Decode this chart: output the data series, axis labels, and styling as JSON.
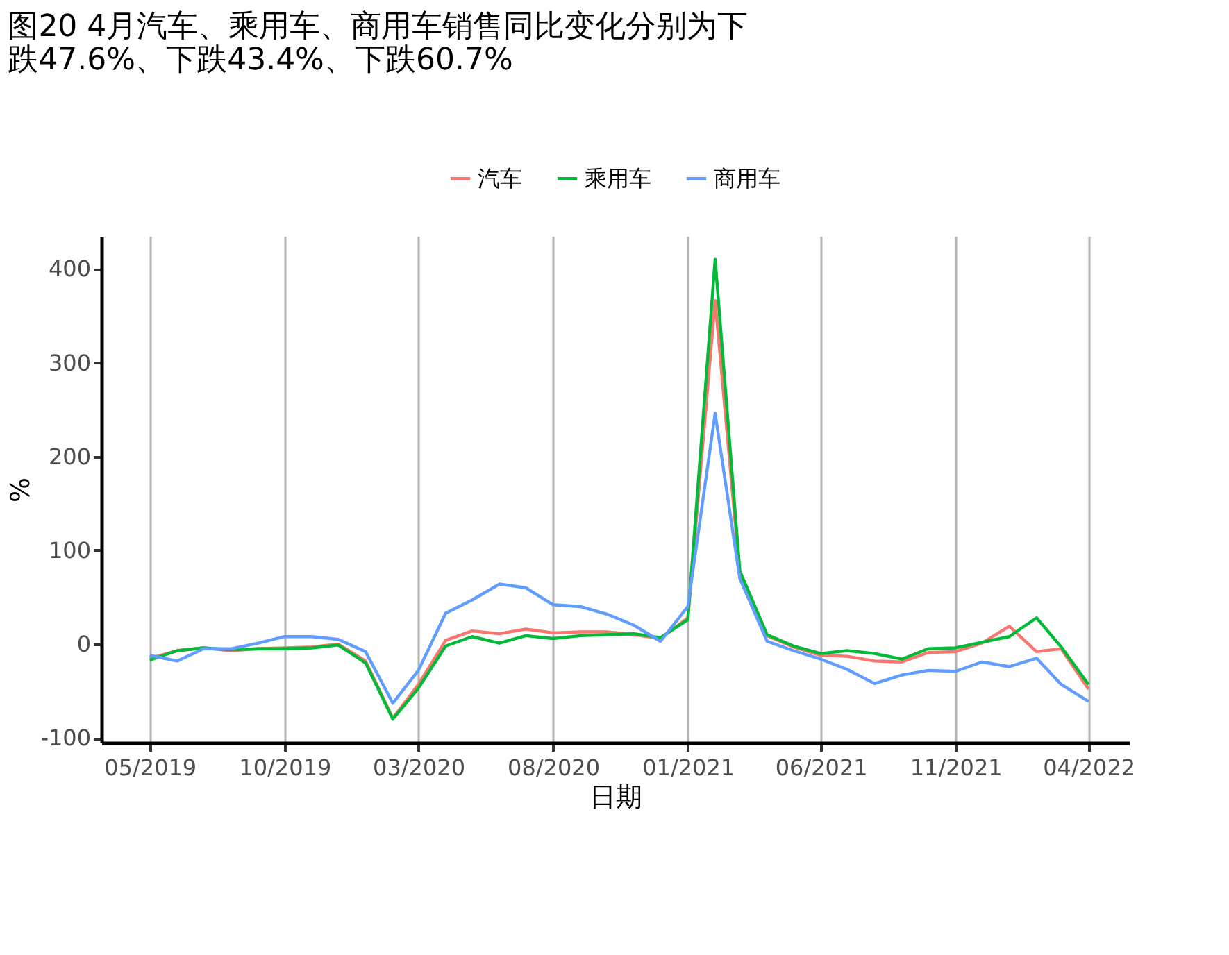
{
  "chart_data": {
    "type": "line",
    "title": "图20 4月汽车、乘用车、商用车销售同比变化分别为下跌47.6%、下跌43.4%、下跌60.7%",
    "xlabel": "日期",
    "ylabel": "%",
    "x": [
      "2019-05",
      "2019-06",
      "2019-07",
      "2019-08",
      "2019-09",
      "2019-10",
      "2019-11",
      "2019-12",
      "2020-01",
      "2020-02",
      "2020-03",
      "2020-04",
      "2020-05",
      "2020-06",
      "2020-07",
      "2020-08",
      "2020-09",
      "2020-10",
      "2020-11",
      "2020-12",
      "2021-01",
      "2021-02",
      "2021-03",
      "2021-04",
      "2021-05",
      "2021-06",
      "2021-07",
      "2021-08",
      "2021-09",
      "2021-10",
      "2021-11",
      "2021-12",
      "2022-01",
      "2022-02",
      "2022-03",
      "2022-04"
    ],
    "series": [
      {
        "name": "汽车",
        "color": "#f8766d",
        "values": [
          -15,
          -7,
          -4,
          -7,
          -5,
          -4,
          -3,
          0,
          -18,
          -79,
          -43,
          4,
          14,
          11,
          16,
          12,
          13,
          13,
          10,
          6,
          28,
          366,
          75,
          9,
          -3,
          -12,
          -13,
          -18,
          -19,
          -9,
          -8,
          1,
          19,
          -8,
          -5,
          -48
        ]
      },
      {
        "name": "乘用车",
        "color": "#00ba38",
        "values": [
          -17,
          -7,
          -4,
          -6,
          -5,
          -5,
          -4,
          -1,
          -20,
          -80,
          -47,
          -2,
          8,
          1,
          9,
          6,
          9,
          10,
          11,
          7,
          26,
          410,
          78,
          10,
          -2,
          -10,
          -7,
          -10,
          -16,
          -5,
          -4,
          2,
          8,
          28,
          -3,
          -43
        ]
      },
      {
        "name": "商用车",
        "color": "#619cff",
        "values": [
          -12,
          -18,
          -5,
          -5,
          1,
          8,
          8,
          5,
          -8,
          -63,
          -28,
          33,
          47,
          64,
          60,
          42,
          40,
          32,
          20,
          3,
          40,
          246,
          70,
          3,
          -7,
          -16,
          -27,
          -42,
          -33,
          -28,
          -29,
          -19,
          -24,
          -15,
          -43,
          -61
        ]
      }
    ],
    "xlim": [
      "2019-03-07",
      "2022-05-17"
    ],
    "xticks": [
      {
        "value": "2019-05",
        "label": "05/2019"
      },
      {
        "value": "2019-10",
        "label": "10/2019"
      },
      {
        "value": "2020-03",
        "label": "03/2020"
      },
      {
        "value": "2020-08",
        "label": "08/2020"
      },
      {
        "value": "2021-01",
        "label": "01/2021"
      },
      {
        "value": "2021-06",
        "label": "06/2021"
      },
      {
        "value": "2021-11",
        "label": "11/2021"
      },
      {
        "value": "2022-04",
        "label": "04/2022"
      }
    ],
    "ylim": [
      -105,
      435
    ],
    "yticks": [
      -100,
      0,
      100,
      200,
      300,
      400
    ],
    "grid": "x",
    "legend": "top",
    "marker": "none",
    "line_style": "solid"
  }
}
